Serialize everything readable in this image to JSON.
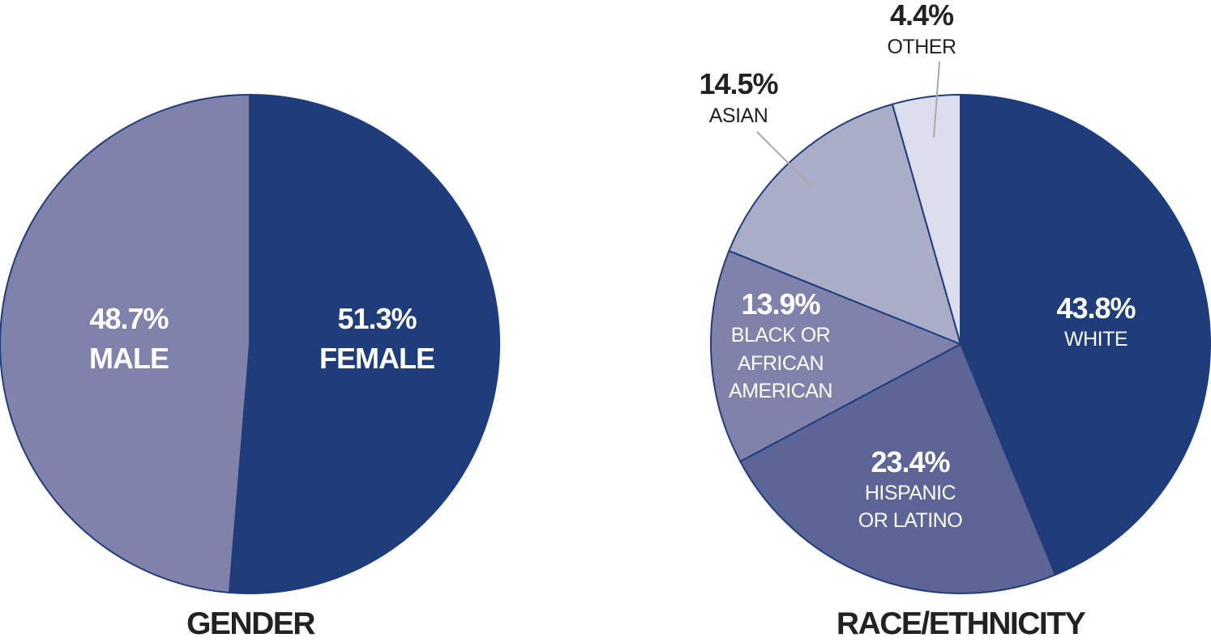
{
  "chart_data": [
    {
      "type": "pie",
      "title": "GENDER",
      "slices": [
        {
          "label": "FEMALE",
          "value": 51.3,
          "value_label": "51.3%",
          "color": "#1f3c7b"
        },
        {
          "label": "MALE",
          "value": 48.7,
          "value_label": "48.7%",
          "color": "#8082ab"
        }
      ]
    },
    {
      "type": "pie",
      "title": "RACE/ETHNICITY",
      "slices": [
        {
          "label": "WHITE",
          "value": 43.8,
          "value_label": "43.8%",
          "color": "#1f3c7b"
        },
        {
          "label": "HISPANIC OR LATINO",
          "label_lines": [
            "HISPANIC",
            "OR LATINO"
          ],
          "value": 23.4,
          "value_label": "23.4%",
          "color": "#5c6596"
        },
        {
          "label": "BLACK OR AFRICAN AMERICAN",
          "label_lines": [
            "BLACK OR",
            "AFRICAN",
            "AMERICAN"
          ],
          "value": 13.9,
          "value_label": "13.9%",
          "color": "#8082ab"
        },
        {
          "label": "ASIAN",
          "value": 14.5,
          "value_label": "14.5%",
          "color": "#aaadc8"
        },
        {
          "label": "OTHER",
          "value": 4.4,
          "value_label": "4.4%",
          "color": "#dcdded"
        }
      ]
    }
  ],
  "colors": {
    "outline": "#1f3c7b",
    "label_dark": "#222222",
    "label_light": "#ffffff",
    "leader": "#aaaaaa"
  }
}
